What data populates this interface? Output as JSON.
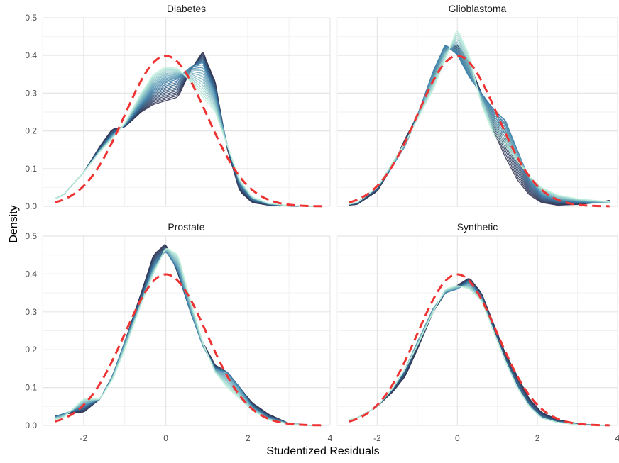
{
  "chart_data": {
    "type": "line",
    "xlabel": "Studentized Residuals",
    "ylabel": "Density",
    "xlim": [
      -3.0,
      4.0
    ],
    "ylim": [
      0,
      0.5
    ],
    "x_ticks": [
      -2,
      0,
      2,
      4
    ],
    "y_ticks": [
      0.0,
      0.1,
      0.2,
      0.3,
      0.4,
      0.5
    ],
    "x_tick_labels": [
      "-2",
      "0",
      "2",
      "4"
    ],
    "y_tick_labels": [
      "0.0",
      "0.1",
      "0.2",
      "0.3",
      "0.4",
      "0.5"
    ],
    "grid": true,
    "legend": "none",
    "colors": {
      "reference": "#ee3333",
      "dark": "#2b2a4a",
      "mid": "#3b7ea8",
      "light": "#bff0dc"
    },
    "panels": [
      {
        "title": "Diabetes",
        "reference_curve": "standard normal density",
        "curves": [
          {
            "x": [
              -3.0,
              -2.5,
              -2.0,
              -1.6,
              -1.3,
              -1.0,
              -0.6,
              -0.3,
              0.0,
              0.3,
              0.6,
              0.9,
              1.2,
              1.5,
              1.8,
              2.1,
              2.5,
              3.0,
              3.5,
              4.0
            ],
            "y": [
              0.005,
              0.03,
              0.09,
              0.16,
              0.205,
              0.21,
              0.25,
              0.27,
              0.28,
              0.29,
              0.36,
              0.41,
              0.33,
              0.15,
              0.04,
              0.01,
              0.003,
              0.001,
              0.0,
              0.0
            ]
          },
          {
            "x": [
              -3.0,
              -2.5,
              -2.0,
              -1.6,
              -1.3,
              -1.0,
              -0.6,
              -0.3,
              0.0,
              0.3,
              0.6,
              0.9,
              1.2,
              1.5,
              1.8,
              2.1,
              2.5,
              3.0,
              3.5,
              4.0
            ],
            "y": [
              0.005,
              0.03,
              0.09,
              0.15,
              0.19,
              0.215,
              0.27,
              0.31,
              0.33,
              0.34,
              0.37,
              0.38,
              0.3,
              0.16,
              0.06,
              0.02,
              0.006,
              0.002,
              0.0,
              0.0
            ]
          },
          {
            "x": [
              -3.0,
              -2.5,
              -2.0,
              -1.6,
              -1.3,
              -1.0,
              -0.6,
              -0.3,
              0.0,
              0.3,
              0.6,
              0.9,
              1.2,
              1.5,
              1.8,
              2.1,
              2.5,
              3.0,
              3.5,
              4.0
            ],
            "y": [
              0.005,
              0.03,
              0.09,
              0.145,
              0.18,
              0.22,
              0.3,
              0.35,
              0.37,
              0.365,
              0.33,
              0.29,
              0.25,
              0.16,
              0.07,
              0.025,
              0.008,
              0.002,
              0.0,
              0.0
            ]
          }
        ]
      },
      {
        "title": "Glioblastoma",
        "reference_curve": "standard normal density",
        "curves": [
          {
            "x": [
              -3.0,
              -2.5,
              -2.0,
              -1.6,
              -1.3,
              -1.0,
              -0.6,
              -0.3,
              0.0,
              0.3,
              0.6,
              0.9,
              1.2,
              1.5,
              1.8,
              2.1,
              2.5,
              3.0,
              3.5,
              4.0
            ],
            "y": [
              0.0,
              0.005,
              0.04,
              0.11,
              0.18,
              0.24,
              0.34,
              0.41,
              0.43,
              0.38,
              0.3,
              0.2,
              0.13,
              0.07,
              0.03,
              0.01,
              0.003,
              0.005,
              0.01,
              0.02
            ]
          },
          {
            "x": [
              -3.0,
              -2.5,
              -2.0,
              -1.6,
              -1.3,
              -1.0,
              -0.6,
              -0.3,
              0.0,
              0.3,
              0.6,
              0.9,
              1.2,
              1.5,
              1.8,
              2.1,
              2.5,
              3.0,
              3.5,
              4.0
            ],
            "y": [
              0.0,
              0.01,
              0.05,
              0.11,
              0.16,
              0.24,
              0.36,
              0.43,
              0.4,
              0.34,
              0.3,
              0.26,
              0.23,
              0.15,
              0.07,
              0.03,
              0.015,
              0.012,
              0.01,
              0.008
            ]
          },
          {
            "x": [
              -3.0,
              -2.5,
              -2.0,
              -1.6,
              -1.3,
              -1.0,
              -0.6,
              -0.3,
              0.0,
              0.3,
              0.6,
              0.9,
              1.2,
              1.5,
              1.8,
              2.1,
              2.5,
              3.0,
              3.5,
              4.0
            ],
            "y": [
              0.0,
              0.01,
              0.05,
              0.12,
              0.17,
              0.23,
              0.31,
              0.39,
              0.47,
              0.4,
              0.27,
              0.19,
              0.16,
              0.12,
              0.08,
              0.05,
              0.03,
              0.02,
              0.015,
              0.01
            ]
          }
        ]
      },
      {
        "title": "Prostate",
        "reference_curve": "standard normal density",
        "curves": [
          {
            "x": [
              -3.0,
              -2.5,
              -2.0,
              -1.6,
              -1.3,
              -1.0,
              -0.6,
              -0.3,
              0.0,
              0.3,
              0.6,
              0.9,
              1.2,
              1.5,
              1.8,
              2.1,
              2.5,
              3.0,
              3.5,
              4.0
            ],
            "y": [
              0.015,
              0.03,
              0.035,
              0.07,
              0.13,
              0.22,
              0.35,
              0.45,
              0.48,
              0.4,
              0.3,
              0.22,
              0.16,
              0.14,
              0.1,
              0.06,
              0.03,
              0.005,
              0.0,
              0.0
            ]
          },
          {
            "x": [
              -3.0,
              -2.5,
              -2.0,
              -1.6,
              -1.3,
              -1.0,
              -0.6,
              -0.3,
              0.0,
              0.3,
              0.6,
              0.9,
              1.2,
              1.5,
              1.8,
              2.1,
              2.5,
              3.0,
              3.5,
              4.0
            ],
            "y": [
              0.01,
              0.03,
              0.05,
              0.07,
              0.13,
              0.22,
              0.33,
              0.42,
              0.46,
              0.41,
              0.3,
              0.21,
              0.15,
              0.14,
              0.1,
              0.05,
              0.02,
              0.005,
              0.0,
              0.0
            ]
          },
          {
            "x": [
              -3.0,
              -2.5,
              -2.0,
              -1.6,
              -1.3,
              -1.0,
              -0.6,
              -0.3,
              0.0,
              0.3,
              0.6,
              0.9,
              1.2,
              1.5,
              1.8,
              2.1,
              2.5,
              3.0,
              3.5,
              4.0
            ],
            "y": [
              0.01,
              0.02,
              0.07,
              0.07,
              0.12,
              0.2,
              0.32,
              0.4,
              0.47,
              0.45,
              0.33,
              0.22,
              0.14,
              0.1,
              0.07,
              0.04,
              0.015,
              0.003,
              0.0,
              0.0
            ]
          }
        ]
      },
      {
        "title": "Synthetic",
        "reference_curve": "standard normal density",
        "curves": [
          {
            "x": [
              -3.0,
              -2.5,
              -2.0,
              -1.6,
              -1.3,
              -1.0,
              -0.6,
              -0.3,
              0.0,
              0.3,
              0.6,
              0.9,
              1.2,
              1.5,
              1.8,
              2.1,
              2.5,
              3.0,
              3.5,
              4.0
            ],
            "y": [
              0.005,
              0.02,
              0.05,
              0.09,
              0.13,
              0.2,
              0.3,
              0.35,
              0.37,
              0.39,
              0.35,
              0.27,
              0.19,
              0.13,
              0.07,
              0.035,
              0.015,
              0.005,
              0.0,
              0.0
            ]
          },
          {
            "x": [
              -3.0,
              -2.5,
              -2.0,
              -1.6,
              -1.3,
              -1.0,
              -0.6,
              -0.3,
              0.0,
              0.3,
              0.6,
              0.9,
              1.2,
              1.5,
              1.8,
              2.1,
              2.5,
              3.0,
              3.5,
              4.0
            ],
            "y": [
              0.005,
              0.02,
              0.05,
              0.1,
              0.15,
              0.22,
              0.31,
              0.35,
              0.36,
              0.38,
              0.34,
              0.25,
              0.17,
              0.1,
              0.05,
              0.02,
              0.008,
              0.003,
              0.0,
              0.0
            ]
          },
          {
            "x": [
              -3.0,
              -2.5,
              -2.0,
              -1.6,
              -1.3,
              -1.0,
              -0.6,
              -0.3,
              0.0,
              0.3,
              0.6,
              0.9,
              1.2,
              1.5,
              1.8,
              2.1,
              2.5,
              3.0,
              3.5,
              4.0
            ],
            "y": [
              0.005,
              0.02,
              0.05,
              0.1,
              0.15,
              0.21,
              0.3,
              0.36,
              0.37,
              0.36,
              0.33,
              0.25,
              0.17,
              0.1,
              0.05,
              0.02,
              0.008,
              0.002,
              0.0,
              0.0
            ]
          }
        ]
      }
    ]
  }
}
